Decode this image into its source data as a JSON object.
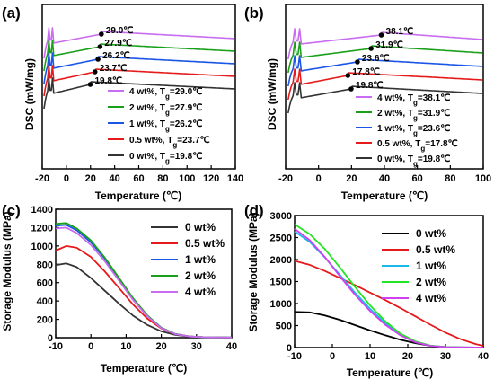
{
  "chart_data": [
    {
      "panel": "(a)",
      "type": "line",
      "xlabel": "Temperature (℃)",
      "ylabel": "DSC (mW/mg)",
      "xlim": [
        -20,
        140
      ],
      "xticks": [
        "-20",
        "0",
        "20",
        "40",
        "60",
        "80",
        "100",
        "120",
        "140"
      ],
      "legend_position": "bottom-right",
      "annotations": [
        "29.0℃",
        "27.9℃",
        "26.2℃",
        "23.7℃",
        "19.8℃"
      ],
      "series": [
        {
          "name": "4 wt%, Tg=29.0℃",
          "label_main": "4 wt%, T",
          "label_sub": "g",
          "label_end": "=29.0℃",
          "color": "#c86cf0",
          "tg": 29.0
        },
        {
          "name": "2 wt%, Tg=27.9℃",
          "label_main": "2 wt%, T",
          "label_sub": "g",
          "label_end": "=27.9℃",
          "color": "#1aa01a",
          "tg": 27.9
        },
        {
          "name": "1 wt%, Tg=26.2℃",
          "label_main": "1 wt%, T",
          "label_sub": "g",
          "label_end": "=26.2℃",
          "color": "#1a55e6",
          "tg": 26.2
        },
        {
          "name": "0.5 wt%, Tg=23.7℃",
          "label_main": "0.5 wt%, T",
          "label_sub": "g",
          "label_end": "=23.7℃",
          "color": "#e61a1a",
          "tg": 23.7
        },
        {
          "name": "0 wt%, Tg=19.8℃",
          "label_main": "0 wt%, T",
          "label_sub": "g",
          "label_end": "=19.8℃",
          "color": "#333333",
          "tg": 19.8
        }
      ]
    },
    {
      "panel": "(b)",
      "type": "line",
      "xlabel": "Temperature (℃)",
      "ylabel": "DSC (mW/mg)",
      "xlim": [
        -20,
        100
      ],
      "xticks": [
        "-20",
        "0",
        "20",
        "40",
        "60",
        "80",
        "100"
      ],
      "legend_position": "bottom-right",
      "annotations": [
        "38.1℃",
        "31.9℃",
        "23.6℃",
        "17.8℃",
        "19.8℃"
      ],
      "series": [
        {
          "name": "4 wt%, Tg=38.1℃",
          "label_main": "4 wt%, T",
          "label_sub": "g",
          "label_end": "=38.1℃",
          "color": "#c86cf0",
          "tg": 38.1
        },
        {
          "name": "2 wt%, Tg=31.9℃",
          "label_main": "2 wt%, T",
          "label_sub": "g",
          "label_end": "=31.9℃",
          "color": "#1aa01a",
          "tg": 31.9
        },
        {
          "name": "1 wt%, Tg=23.6℃",
          "label_main": "1 wt%, T",
          "label_sub": "g",
          "label_end": "=23.6℃",
          "color": "#1a55e6",
          "tg": 23.6
        },
        {
          "name": "0.5 wt%, Tg=17.8℃",
          "label_main": "0.5 wt%, T",
          "label_sub": "g",
          "label_end": "=17.8℃",
          "color": "#e61a1a",
          "tg": 17.8
        },
        {
          "name": "0 wt%, Tg=19.8℃",
          "label_main": "0 wt%, T",
          "label_sub": "g",
          "label_end": "=19.8℃",
          "color": "#333333",
          "tg": 19.8
        }
      ]
    },
    {
      "panel": "(c)",
      "type": "line",
      "xlabel": "Temperature (℃)",
      "ylabel": "Storage Modulus (MPa)",
      "xlim": [
        -10,
        40
      ],
      "ylim": [
        0,
        1400
      ],
      "xticks": [
        -10,
        0,
        10,
        20,
        30,
        40
      ],
      "yticks": [
        0,
        200,
        400,
        600,
        800,
        1000,
        1200,
        1400
      ],
      "legend_position": "top-right",
      "series": [
        {
          "name": "0 wt%",
          "color": "#333333",
          "x": [
            -10,
            -7,
            -4,
            0,
            4,
            8,
            12,
            16,
            20,
            24,
            28,
            32,
            36,
            40
          ],
          "values": [
            790,
            810,
            770,
            650,
            510,
            370,
            240,
            140,
            70,
            30,
            12,
            6,
            3,
            2
          ]
        },
        {
          "name": "0.5 wt%",
          "color": "#e61a1a",
          "x": [
            -10,
            -7,
            -4,
            0,
            4,
            8,
            12,
            16,
            20,
            24,
            28,
            32,
            36,
            40
          ],
          "values": [
            950,
            1000,
            980,
            880,
            720,
            540,
            360,
            210,
            100,
            40,
            15,
            6,
            3,
            2
          ]
        },
        {
          "name": "1 wt%",
          "color": "#1a55e6",
          "x": [
            -10,
            -7,
            -4,
            0,
            4,
            8,
            12,
            16,
            20,
            24,
            28,
            32,
            36,
            40
          ],
          "values": [
            1220,
            1230,
            1170,
            1040,
            860,
            640,
            420,
            240,
            110,
            40,
            14,
            6,
            3,
            2
          ]
        },
        {
          "name": "2 wt%",
          "color": "#1aa01a",
          "x": [
            -10,
            -7,
            -4,
            0,
            4,
            8,
            12,
            16,
            20,
            24,
            28,
            32,
            36,
            40
          ],
          "values": [
            1240,
            1250,
            1190,
            1060,
            870,
            650,
            430,
            245,
            110,
            40,
            14,
            6,
            3,
            2
          ]
        },
        {
          "name": "4 wt%",
          "color": "#c86cf0",
          "x": [
            -10,
            -7,
            -4,
            0,
            4,
            8,
            12,
            16,
            20,
            24,
            28,
            32,
            36,
            40
          ],
          "values": [
            1190,
            1200,
            1140,
            1010,
            830,
            620,
            410,
            235,
            105,
            38,
            13,
            6,
            3,
            2
          ]
        }
      ]
    },
    {
      "panel": "(d)",
      "type": "line",
      "xlabel": "Temperature (℃)",
      "ylabel": "Storage Modulus (MPa)",
      "xlim": [
        -10,
        40
      ],
      "ylim": [
        0,
        3000
      ],
      "xticks": [
        -10,
        0,
        10,
        20,
        30,
        40
      ],
      "yticks": [
        0,
        500,
        1000,
        1500,
        2000,
        2500,
        3000
      ],
      "legend_position": "top-right",
      "series": [
        {
          "name": "0 wt%",
          "color": "#000000",
          "x": [
            -10,
            -6,
            -2,
            2,
            6,
            10,
            14,
            18,
            22,
            26,
            30,
            34,
            38,
            40
          ],
          "values": [
            810,
            800,
            730,
            630,
            510,
            390,
            280,
            180,
            100,
            40,
            12,
            5,
            2,
            2
          ]
        },
        {
          "name": "0.5 wt%",
          "color": "#e61a1a",
          "x": [
            -10,
            -6,
            -2,
            2,
            6,
            10,
            14,
            18,
            22,
            26,
            30,
            34,
            38,
            40
          ],
          "values": [
            1970,
            1880,
            1740,
            1580,
            1420,
            1250,
            1080,
            900,
            710,
            520,
            340,
            190,
            80,
            40
          ]
        },
        {
          "name": "1 wt%",
          "color": "#1ab8e6",
          "x": [
            -10,
            -6,
            -2,
            2,
            6,
            10,
            14,
            18,
            22,
            26,
            30,
            34,
            38,
            40
          ],
          "values": [
            2640,
            2400,
            2050,
            1650,
            1250,
            880,
            560,
            300,
            130,
            40,
            12,
            5,
            2,
            2
          ]
        },
        {
          "name": "2 wt%",
          "color": "#22e622",
          "x": [
            -10,
            -6,
            -2,
            2,
            6,
            10,
            14,
            18,
            22,
            26,
            30,
            34,
            38,
            40
          ],
          "values": [
            2800,
            2580,
            2240,
            1820,
            1380,
            960,
            600,
            320,
            140,
            45,
            13,
            5,
            2,
            2
          ]
        },
        {
          "name": "4 wt%",
          "color": "#d040f0",
          "x": [
            -10,
            -6,
            -2,
            2,
            6,
            10,
            14,
            18,
            22,
            26,
            30,
            34,
            38,
            40
          ],
          "values": [
            2700,
            2440,
            2060,
            1620,
            1200,
            830,
            520,
            280,
            120,
            38,
            11,
            5,
            2,
            2
          ]
        }
      ]
    }
  ]
}
